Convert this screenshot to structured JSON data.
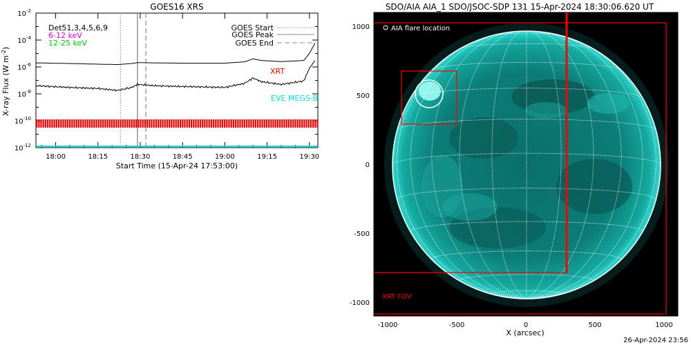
{
  "left_panel": {
    "title": "GOES16 XRS",
    "ylabel": "X-ray Flux (W m",
    "ylabel_sup": "-2",
    "ylabel_close": ")",
    "xlabel": "Start Time (15-Apr-24 17:53:00)",
    "yticks": [
      {
        "base": "10",
        "exp": "-2"
      },
      {
        "base": "10",
        "exp": "-4"
      },
      {
        "base": "10",
        "exp": "-6"
      },
      {
        "base": "10",
        "exp": "-8"
      },
      {
        "base": "10",
        "exp": "-10"
      },
      {
        "base": "10",
        "exp": "-12"
      }
    ],
    "xticks": [
      "18:00",
      "18:15",
      "18:30",
      "18:45",
      "19:00",
      "19:15",
      "19:30"
    ],
    "legend_left": [
      {
        "text": "Det51,3,4,5,6,9",
        "color": "#000000"
      },
      {
        "text": "6-12 keV",
        "color": "#e000e0"
      },
      {
        "text": "12-25 keV",
        "color": "#00c800"
      }
    ],
    "legend_right": [
      {
        "text": "GOES Start",
        "style": "dotted"
      },
      {
        "text": "GOES Peak",
        "style": "solid"
      },
      {
        "text": "GOES End",
        "style": "dashed"
      }
    ],
    "xrt_label": "XRT",
    "eve_label": "EVE MEGS-B",
    "colors": {
      "xrt": "#ff0000",
      "eve": "#00e0e0",
      "axis": "#000000"
    }
  },
  "right_panel": {
    "title": "SDO/AIA AIA_1 SDO/JSOC-SDP 131 15-Apr-2024 18:30:06.620 UT",
    "xlabel": "X (arcsec)",
    "xticks": [
      "-1000",
      "-500",
      "0",
      "500",
      "1000"
    ],
    "yticks": [
      "1000",
      "500",
      "0",
      "-500",
      "-1000"
    ],
    "flare_legend": "AIA flare location",
    "xrt_fov_label": "XRT FOV",
    "colors": {
      "disk": "#0a8a80",
      "box": "#ff0000",
      "grid": "#ffffff"
    }
  },
  "footer_timestamp": "26-Apr-2024 23:56",
  "chart_data": [
    {
      "type": "line",
      "title": "GOES16 XRS",
      "xlabel": "Start Time (15-Apr-24 17:53:00)",
      "ylabel": "X-ray Flux (W m-2)",
      "yscale": "log",
      "xlim": [
        "17:53",
        "19:33"
      ],
      "ylim": [
        1e-12,
        0.01
      ],
      "events": {
        "goes_start": "18:23",
        "goes_peak": "18:29",
        "goes_end": "18:32"
      },
      "series": [
        {
          "name": "GOES Peak",
          "x": [
            "17:53",
            "18:05",
            "18:15",
            "18:22",
            "18:27",
            "18:29",
            "18:35",
            "18:45",
            "19:00",
            "19:07",
            "19:10",
            "19:13",
            "19:20",
            "19:28",
            "19:30",
            "19:32"
          ],
          "values": [
            2e-06,
            1.8e-06,
            1.6e-06,
            1.5e-06,
            1.8e-06,
            2.1e-06,
            2e-06,
            1.9e-06,
            1.9e-06,
            2.4e-06,
            4e-06,
            3e-06,
            2.5e-06,
            3e-06,
            1e-05,
            6e-05
          ]
        },
        {
          "name": "XRT",
          "x": [
            "17:53",
            "18:05",
            "18:15",
            "18:22",
            "18:27",
            "18:29",
            "18:35",
            "18:45",
            "19:00",
            "19:07",
            "19:10",
            "19:13",
            "19:20",
            "19:28",
            "19:30",
            "19:32"
          ],
          "values": [
            4e-08,
            3e-08,
            2.5e-08,
            1.8e-08,
            3e-08,
            5e-08,
            4e-08,
            3.5e-08,
            3e-08,
            6e-08,
            1.5e-07,
            8e-08,
            5e-08,
            9e-08,
            8e-07,
            3e-06
          ]
        }
      ],
      "xrt_coverage": [
        [
          "17:53",
          "19:33"
        ]
      ]
    },
    {
      "type": "image",
      "title": "SDO/AIA AIA_1 SDO/JSOC-SDP 131 15-Apr-2024 18:30:06.620 UT",
      "xlabel": "X (arcsec)",
      "xlim": [
        -1100,
        1100
      ],
      "ylim": [
        -1100,
        1100
      ],
      "flare_location": [
        -700,
        500
      ],
      "xrt_fov_box": [
        [
          -1100,
          -780
        ],
        [
          1000,
          1040
        ]
      ]
    }
  ]
}
